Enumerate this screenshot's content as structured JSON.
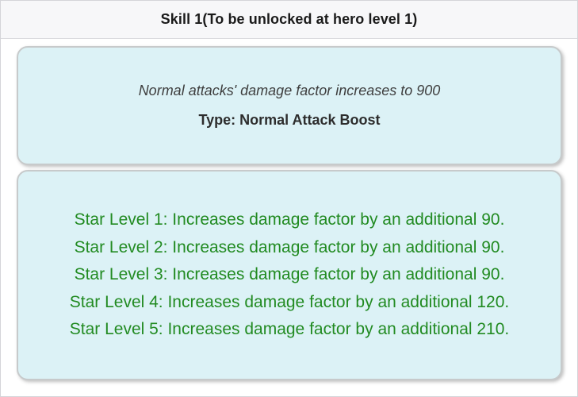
{
  "header": {
    "title": "Skill 1(To be unlocked at hero level 1)"
  },
  "skill": {
    "effect": "Normal attacks' damage factor increases to 900",
    "type_label": "Type: Normal Attack Boost"
  },
  "star_levels": {
    "lines": [
      "Star Level 1: Increases damage factor by an additional 90.",
      "Star Level 2: Increases damage factor by an additional 90.",
      "Star Level 3: Increases damage factor by an additional 90.",
      "Star Level 4: Increases damage factor by an additional 120.",
      "Star Level 5: Increases damage factor by an additional 210."
    ]
  },
  "colors": {
    "card_bg": "#dcf2f6",
    "star_text": "#228B22",
    "header_bg": "#f7f7f9",
    "effect_text": "#3e3e3e",
    "type_text": "#2d2d2d"
  }
}
